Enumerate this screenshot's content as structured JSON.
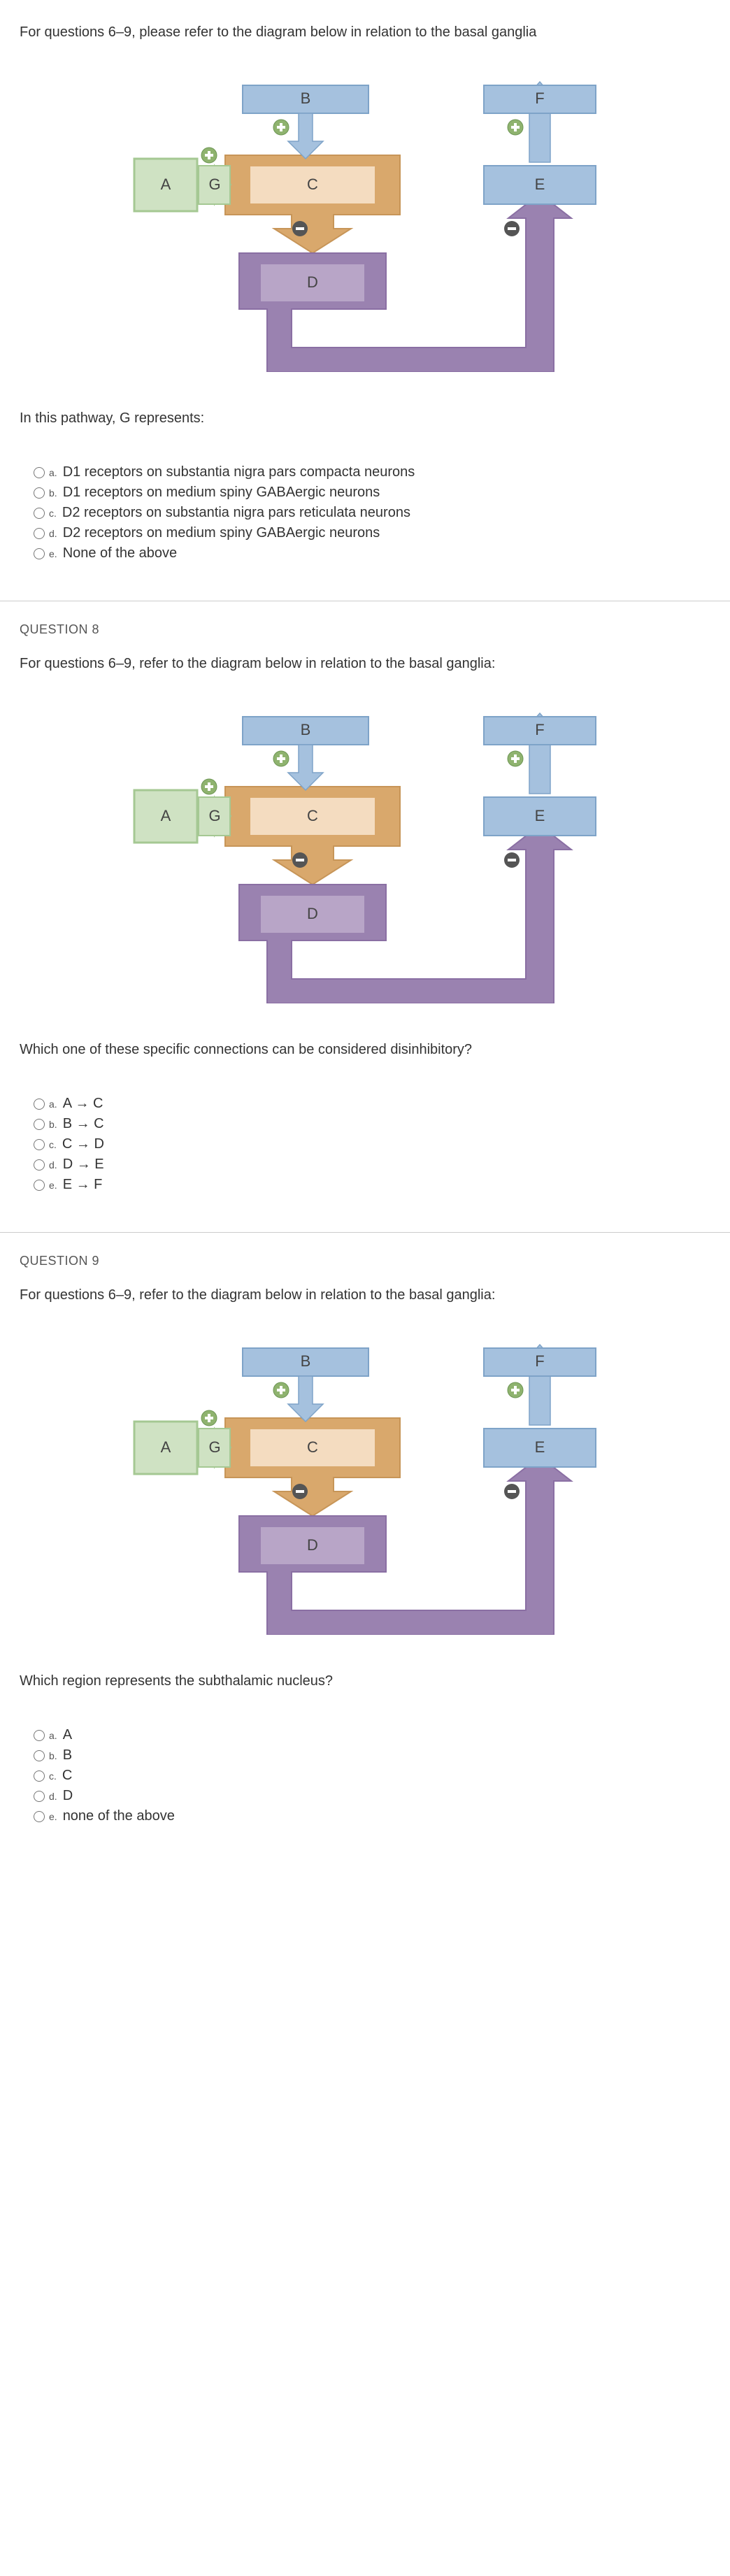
{
  "diagram": {
    "boxes": {
      "A": {
        "label": "A",
        "fill": "#cfe2c3",
        "stroke": "#a5c893"
      },
      "G": {
        "label": "G",
        "fill": "#cfe2c3",
        "stroke": "#a5c893"
      },
      "B": {
        "label": "B",
        "fill": "#a5c1de",
        "stroke": "#7ea3c8"
      },
      "C": {
        "label": "C",
        "fill": "#f4dcc0",
        "stroke": "#d9a86c"
      },
      "D": {
        "label": "D",
        "fill": "#b8a5c7",
        "stroke": "#9a82b0"
      },
      "E": {
        "label": "E",
        "fill": "#a5c1de",
        "stroke": "#7ea3c8"
      },
      "F": {
        "label": "F",
        "fill": "#a5c1de",
        "stroke": "#7ea3c8"
      }
    },
    "colors": {
      "c_container": "#d9a86c",
      "d_container": "#9a82b0",
      "plus_fill": "#8fb36f",
      "minus_fill": "#555555",
      "text": "#444444",
      "bg": "#ffffff"
    }
  },
  "q7": {
    "prompt": "For questions 6–9, please refer to the diagram below in relation to the basal ganglia",
    "sub_prompt": "In this pathway, G represents:",
    "options": [
      {
        "letter": "a.",
        "label": "D1 receptors on substantia nigra pars compacta neurons"
      },
      {
        "letter": "b.",
        "label": "D1 receptors on medium spiny GABAergic neurons"
      },
      {
        "letter": "c.",
        "label": "D2 receptors on substantia nigra pars reticulata neurons"
      },
      {
        "letter": "d.",
        "label": "D2 receptors on medium spiny GABAergic neurons"
      },
      {
        "letter": "e.",
        "label": "None of the above"
      }
    ]
  },
  "q8": {
    "header": "QUESTION 8",
    "prompt": "For questions 6–9, refer to the diagram below in relation to the basal ganglia:",
    "sub_prompt": "Which one of these specific connections can be considered disinhibitory?",
    "options": [
      {
        "letter": "a.",
        "label": "A → C"
      },
      {
        "letter": "b.",
        "label": "B → C"
      },
      {
        "letter": "c.",
        "label": "C → D"
      },
      {
        "letter": "d.",
        "label": "D → E"
      },
      {
        "letter": "e.",
        "label": "E → F"
      }
    ]
  },
  "q9": {
    "header": "QUESTION 9",
    "prompt": "For questions 6–9, refer to the diagram below in relation to the basal ganglia:",
    "sub_prompt": "Which region represents the subthalamic nucleus?",
    "options": [
      {
        "letter": "a.",
        "label": "A"
      },
      {
        "letter": "b.",
        "label": "B"
      },
      {
        "letter": "c.",
        "label": "C"
      },
      {
        "letter": "d.",
        "label": "D"
      },
      {
        "letter": "e.",
        "label": "none of the above"
      }
    ]
  }
}
